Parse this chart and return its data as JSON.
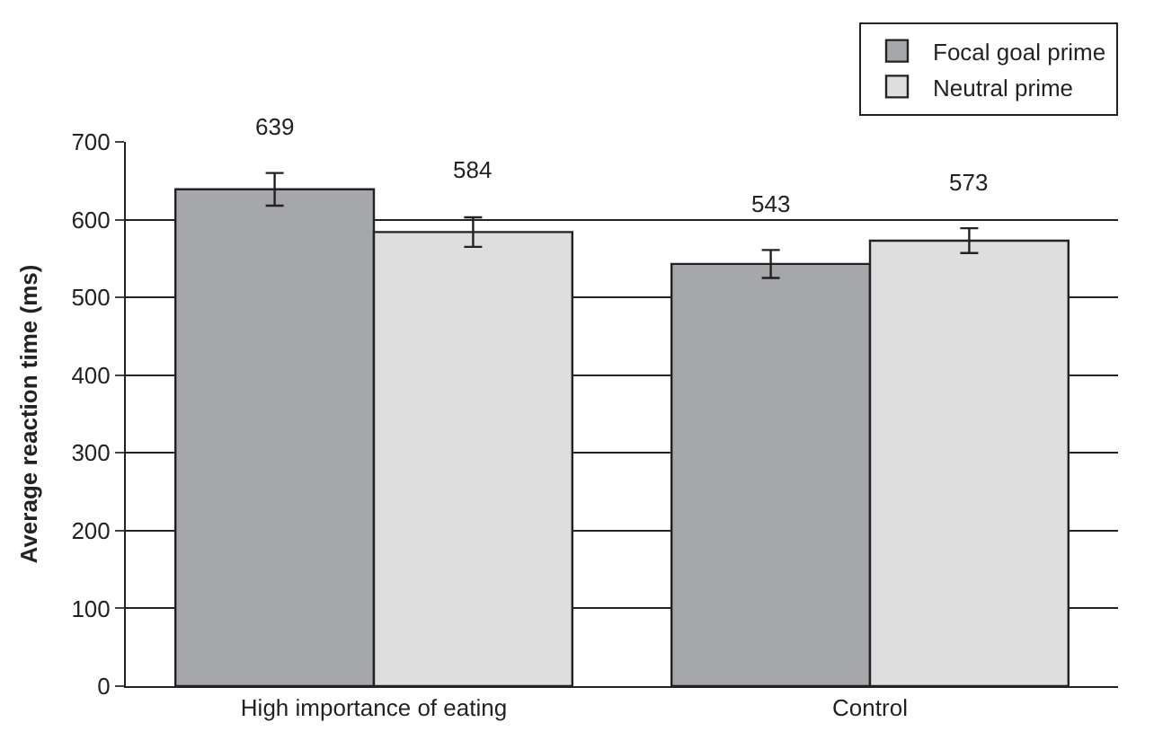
{
  "chart_data": {
    "type": "bar",
    "ylabel": "Average reaction time (ms)",
    "categories": [
      "High importance of eating",
      "Control"
    ],
    "series": [
      {
        "name": "Focal goal prime",
        "color": "#a6a7ab",
        "values": [
          639,
          543
        ],
        "errors": [
          21,
          18
        ]
      },
      {
        "name": "Neutral prime",
        "color": "#dedede",
        "values": [
          584,
          573
        ],
        "errors": [
          19,
          16
        ]
      }
    ],
    "ylim": [
      0,
      700
    ],
    "yticks": [
      0,
      100,
      200,
      300,
      400,
      500,
      600,
      700
    ],
    "grid": "y",
    "legend": "top right",
    "data_labels": true
  }
}
